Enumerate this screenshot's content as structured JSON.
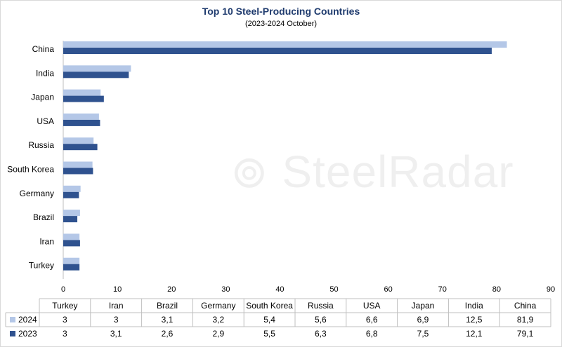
{
  "chart_data": {
    "type": "bar",
    "orientation": "horizontal",
    "title": "Top 10 Steel-Producing Countries",
    "subtitle": "(2023-2024 October)",
    "categories": [
      "Turkey",
      "Iran",
      "Brazil",
      "Germany",
      "South Korea",
      "Russia",
      "USA",
      "Japan",
      "India",
      "China"
    ],
    "series": [
      {
        "name": "2024",
        "color": "#b4c7e7",
        "values": [
          3,
          3,
          3.1,
          3.2,
          5.4,
          5.6,
          6.6,
          6.9,
          12.5,
          81.9
        ],
        "labels": [
          "3",
          "3",
          "3,1",
          "3,2",
          "5,4",
          "5,6",
          "6,6",
          "6,9",
          "12,5",
          "81,9"
        ]
      },
      {
        "name": "2023",
        "color": "#2f528f",
        "values": [
          3,
          3.1,
          2.6,
          2.9,
          5.5,
          6.3,
          6.8,
          7.5,
          12.1,
          79.1
        ],
        "labels": [
          "3",
          "3,1",
          "2,6",
          "2,9",
          "5,5",
          "6,3",
          "6,8",
          "7,5",
          "12,1",
          "79,1"
        ]
      }
    ],
    "xlim": [
      0,
      90
    ],
    "xticks": [
      0,
      10,
      20,
      30,
      40,
      50,
      60,
      70,
      80,
      90
    ],
    "grid": false,
    "legend": "data-table"
  },
  "watermark": "SteelRadar"
}
